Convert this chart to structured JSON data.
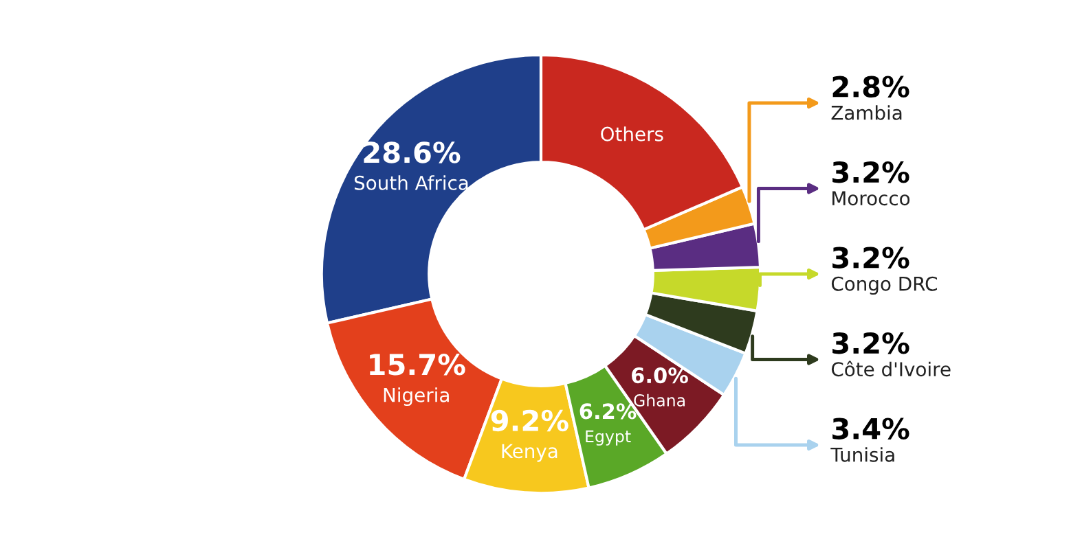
{
  "chart_data": {
    "type": "donut",
    "legend": "right",
    "categories": [
      "South Africa",
      "Nigeria",
      "Kenya",
      "Egypt",
      "Ghana",
      "Tunisia",
      "Côte d'Ivoire",
      "Congo DRC",
      "Morocco",
      "Zambia",
      "Others"
    ],
    "values": [
      28.6,
      15.7,
      9.2,
      6.2,
      6.0,
      3.4,
      3.2,
      3.2,
      3.2,
      2.8,
      18.5
    ],
    "colors": [
      "#1f3f8a",
      "#e3401c",
      "#f7c81e",
      "#5aa827",
      "#7c1a24",
      "#a9d2ee",
      "#2e3b1e",
      "#c6d92a",
      "#5a2d82",
      "#f39a1b",
      "#c9281f"
    ],
    "value_labels": [
      "28.6%",
      "15.7%",
      "9.2%",
      "6.2%",
      "6.0%",
      "3.4%",
      "3.2%",
      "3.2%",
      "3.2%",
      "2.8%",
      null
    ]
  }
}
